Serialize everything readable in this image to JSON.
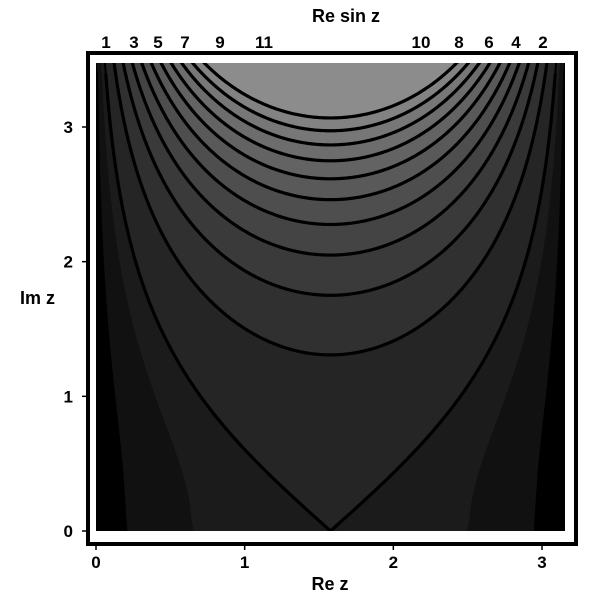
{
  "chart_data": {
    "type": "contour",
    "function": "Re sin z",
    "title": "Re sin z",
    "xlabel": "Re z",
    "ylabel": "Im z",
    "xlim": [
      0,
      3.14159
    ],
    "ylim": [
      0,
      3.5
    ],
    "x_ticks": [
      0,
      1,
      2,
      3
    ],
    "y_ticks": [
      0,
      1,
      2,
      3
    ],
    "contour_levels": [
      1,
      2,
      3,
      4,
      5,
      6,
      7,
      8,
      9,
      10,
      11
    ],
    "top_labels_left": [
      "1",
      "3",
      "5",
      "7",
      "9",
      "11"
    ],
    "top_labels_right": [
      "10",
      "8",
      "6",
      "4",
      "2"
    ],
    "fill_colors": {
      "dark": "#000000",
      "bright": "#8c8c8c",
      "contour": "#000000",
      "frame": "#000000"
    }
  }
}
